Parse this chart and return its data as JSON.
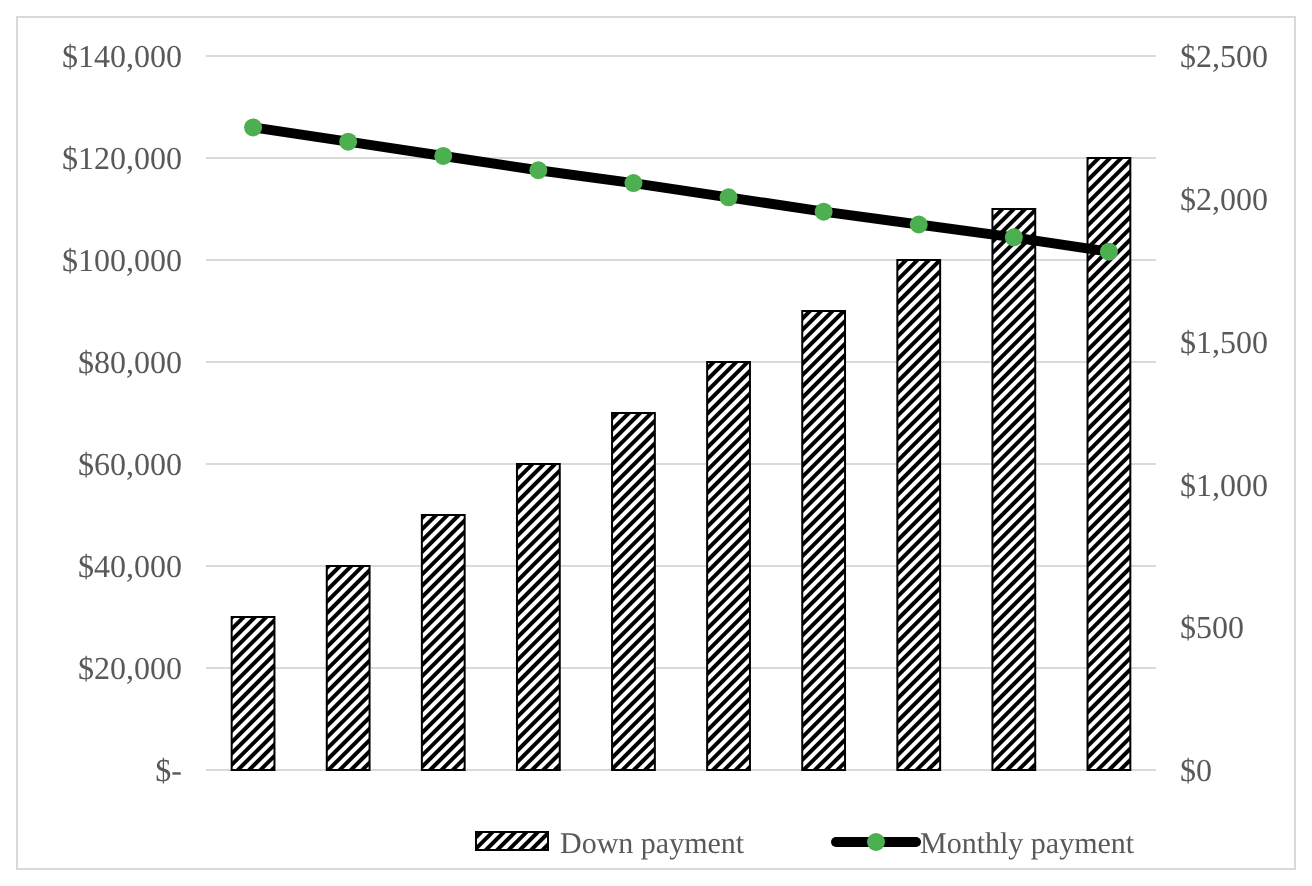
{
  "chart_data": {
    "type": "bar",
    "categories": [
      null,
      null,
      null,
      null,
      null,
      null,
      null,
      null,
      null,
      null
    ],
    "series": [
      {
        "name": "Down payment",
        "color": "#000000",
        "values": [
          30000,
          40000,
          50000,
          60000,
          70000,
          80000,
          90000,
          100000,
          110000,
          120000
        ]
      },
      {
        "name": "Monthly payment",
        "type": "line",
        "axis": "y2",
        "color": "#000000",
        "values": [
          2250,
          2200,
          2150,
          2100,
          2055,
          2005,
          1955,
          1910,
          1865,
          1815
        ]
      }
    ],
    "ylim": [
      0,
      140000
    ],
    "yticks": [
      {
        "value": 0,
        "label": "$-"
      },
      {
        "value": 20000,
        "label": "$20,000"
      },
      {
        "value": 40000,
        "label": "$40,000"
      },
      {
        "value": 60000,
        "label": "$60,000"
      },
      {
        "value": 80000,
        "label": "$80,000"
      },
      {
        "value": 100000,
        "label": "$100,000"
      },
      {
        "value": 120000,
        "label": "$120,000"
      },
      {
        "value": 140000,
        "label": "$140,000"
      }
    ],
    "y2lim": [
      0,
      2500
    ],
    "y2ticks": [
      {
        "value": 0,
        "label": "$0"
      },
      {
        "value": 500,
        "label": "$500"
      },
      {
        "value": 1000,
        "label": "$1,000"
      },
      {
        "value": 1500,
        "label": "$1,500"
      },
      {
        "value": 2000,
        "label": "$2,000"
      },
      {
        "value": 2500,
        "label": "$2,500"
      }
    ],
    "grid": "y",
    "legend": "bottom",
    "marker": "circle",
    "line_style": "solid"
  }
}
